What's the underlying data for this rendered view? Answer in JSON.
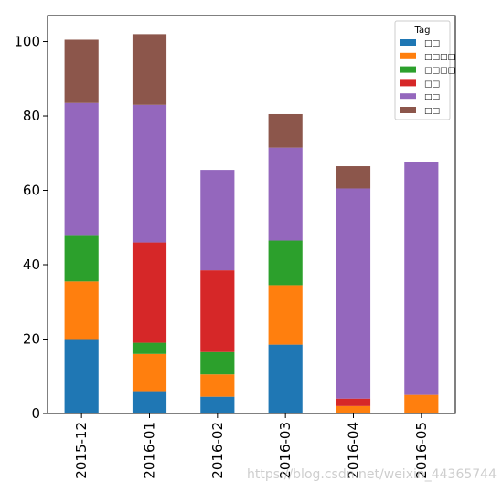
{
  "chart_data": {
    "type": "bar",
    "stacked": true,
    "categories": [
      "2015-12",
      "2016-01",
      "2016-02",
      "2016-03",
      "2016-04",
      "2016-05"
    ],
    "series": [
      {
        "name": "□□",
        "color": "#1f77b4",
        "values": [
          20,
          6,
          4.5,
          18.5,
          0,
          0
        ]
      },
      {
        "name": "□□□□",
        "color": "#ff7f0e",
        "values": [
          15.5,
          10,
          6,
          16,
          2,
          5
        ]
      },
      {
        "name": "□□□□",
        "color": "#2ca02c",
        "values": [
          12.5,
          3,
          6,
          12,
          0,
          0
        ]
      },
      {
        "name": "□□",
        "color": "#d62728",
        "values": [
          0,
          27,
          22,
          0,
          2,
          0
        ]
      },
      {
        "name": "□□",
        "color": "#9467bd",
        "values": [
          35.5,
          37,
          27,
          25,
          56.5,
          62.5
        ]
      },
      {
        "name": "□□",
        "color": "#8c564b",
        "values": [
          17,
          19,
          0,
          9,
          6,
          0
        ]
      }
    ],
    "ylim": [
      0,
      107
    ],
    "yticks": [
      "0",
      "20",
      "40",
      "60",
      "80",
      "100"
    ],
    "grid": false,
    "legend": {
      "title": "Tag",
      "position": "top-right"
    }
  },
  "watermark": "https://blog.csdn.net/weixin_44365744"
}
